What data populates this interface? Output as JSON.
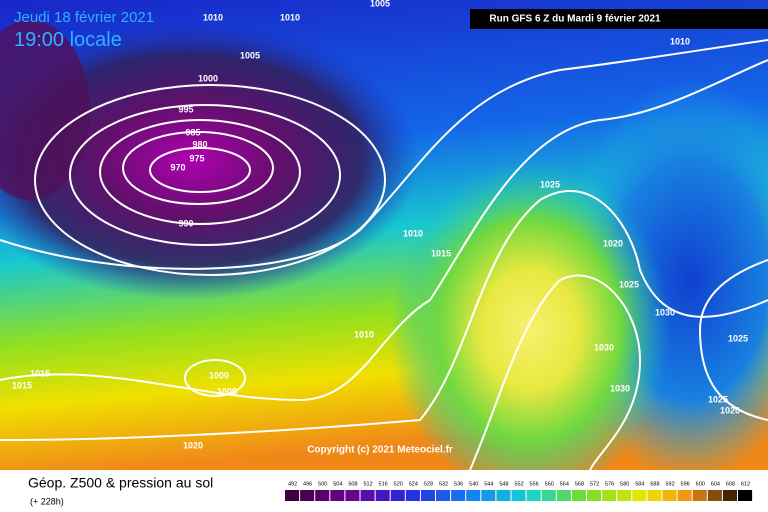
{
  "header": {
    "date": "Jeudi 18 février 2021",
    "time": "19:00 locale",
    "run": "Run GFS 6 Z du Mardi 9 février 2021"
  },
  "isobars": [
    "1005",
    "1010",
    "1010",
    "1005",
    "1000",
    "995",
    "985",
    "980",
    "975",
    "970",
    "990",
    "1010",
    "1025",
    "1010",
    "1015",
    "1020",
    "1025",
    "1030",
    "1010",
    "1030",
    "1025",
    "1015",
    "1015",
    "1000",
    "1005",
    "1030",
    "1025",
    "1020",
    "1020"
  ],
  "copyright": "Copyright (c) 2021 Meteociel.fr",
  "footer": {
    "title": "Géop. Z500 & pression au sol",
    "lead": "(+ 228h)"
  },
  "colorbar": [
    492,
    496,
    500,
    504,
    508,
    512,
    516,
    520,
    524,
    528,
    532,
    536,
    540,
    544,
    548,
    552,
    556,
    560,
    564,
    568,
    572,
    576,
    580,
    584,
    588,
    592,
    596,
    600,
    604,
    608,
    612
  ]
}
